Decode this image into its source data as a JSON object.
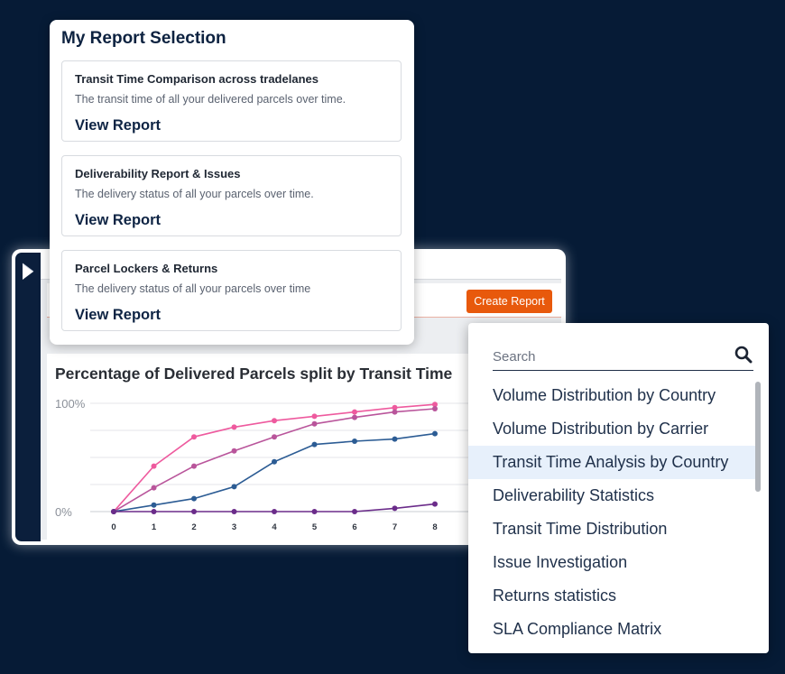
{
  "colors": {
    "background": "#061b36",
    "accent": "#e8590c",
    "highlight": "#e7f0fb",
    "text_dark": "#0d2240"
  },
  "icons": {
    "sidebar_toggle": "chevron-right-icon",
    "search": "search-icon"
  },
  "selection": {
    "title": "My Report Selection",
    "cards": [
      {
        "title": "Transit Time Comparison across tradelanes",
        "description": "The transit time of all your delivered parcels over time.",
        "link": "View Report"
      },
      {
        "title": "Deliverability Report & Issues",
        "description": "The delivery status of all your parcels over time.",
        "link": "View Report"
      },
      {
        "title": "Parcel Lockers & Returns",
        "description": "The delivery status of all your parcels over time",
        "link": "View Report"
      }
    ]
  },
  "dashboard": {
    "create_report_label": "Create Report"
  },
  "dropdown": {
    "search_placeholder": "Search",
    "highlighted_index": 2,
    "items": [
      "Volume Distribution by Country",
      "Volume Distribution by Carrier",
      "Transit Time Analysis by Country",
      "Deliverability Statistics",
      "Transit Time Distribution",
      "Issue Investigation",
      "Returns statistics",
      "SLA Compliance Matrix"
    ]
  },
  "chart_data": {
    "type": "line",
    "title": "Percentage of Delivered Parcels split by Transit Time",
    "x": [
      0,
      1,
      2,
      3,
      4,
      5,
      6,
      7,
      8
    ],
    "ylim": [
      0,
      100
    ],
    "y_ticks": [
      {
        "value": 100,
        "label": "100%"
      },
      {
        "value": 0,
        "label": "0%"
      }
    ],
    "y_grid": [
      0,
      25,
      50,
      75,
      100
    ],
    "grid": true,
    "series": [
      {
        "color": "#ee5a9e",
        "values": [
          0,
          42,
          69,
          78,
          84,
          88,
          92,
          96,
          99
        ]
      },
      {
        "color": "#b9559b",
        "values": [
          0,
          22,
          42,
          56,
          69,
          81,
          87,
          92,
          95
        ]
      },
      {
        "color": "#2c5c94",
        "values": [
          0,
          6,
          12,
          23,
          46,
          62,
          65,
          67,
          72
        ]
      },
      {
        "color": "#6b2c8a",
        "values": [
          0,
          0,
          0,
          0,
          0,
          0,
          0,
          3,
          7
        ]
      }
    ]
  }
}
